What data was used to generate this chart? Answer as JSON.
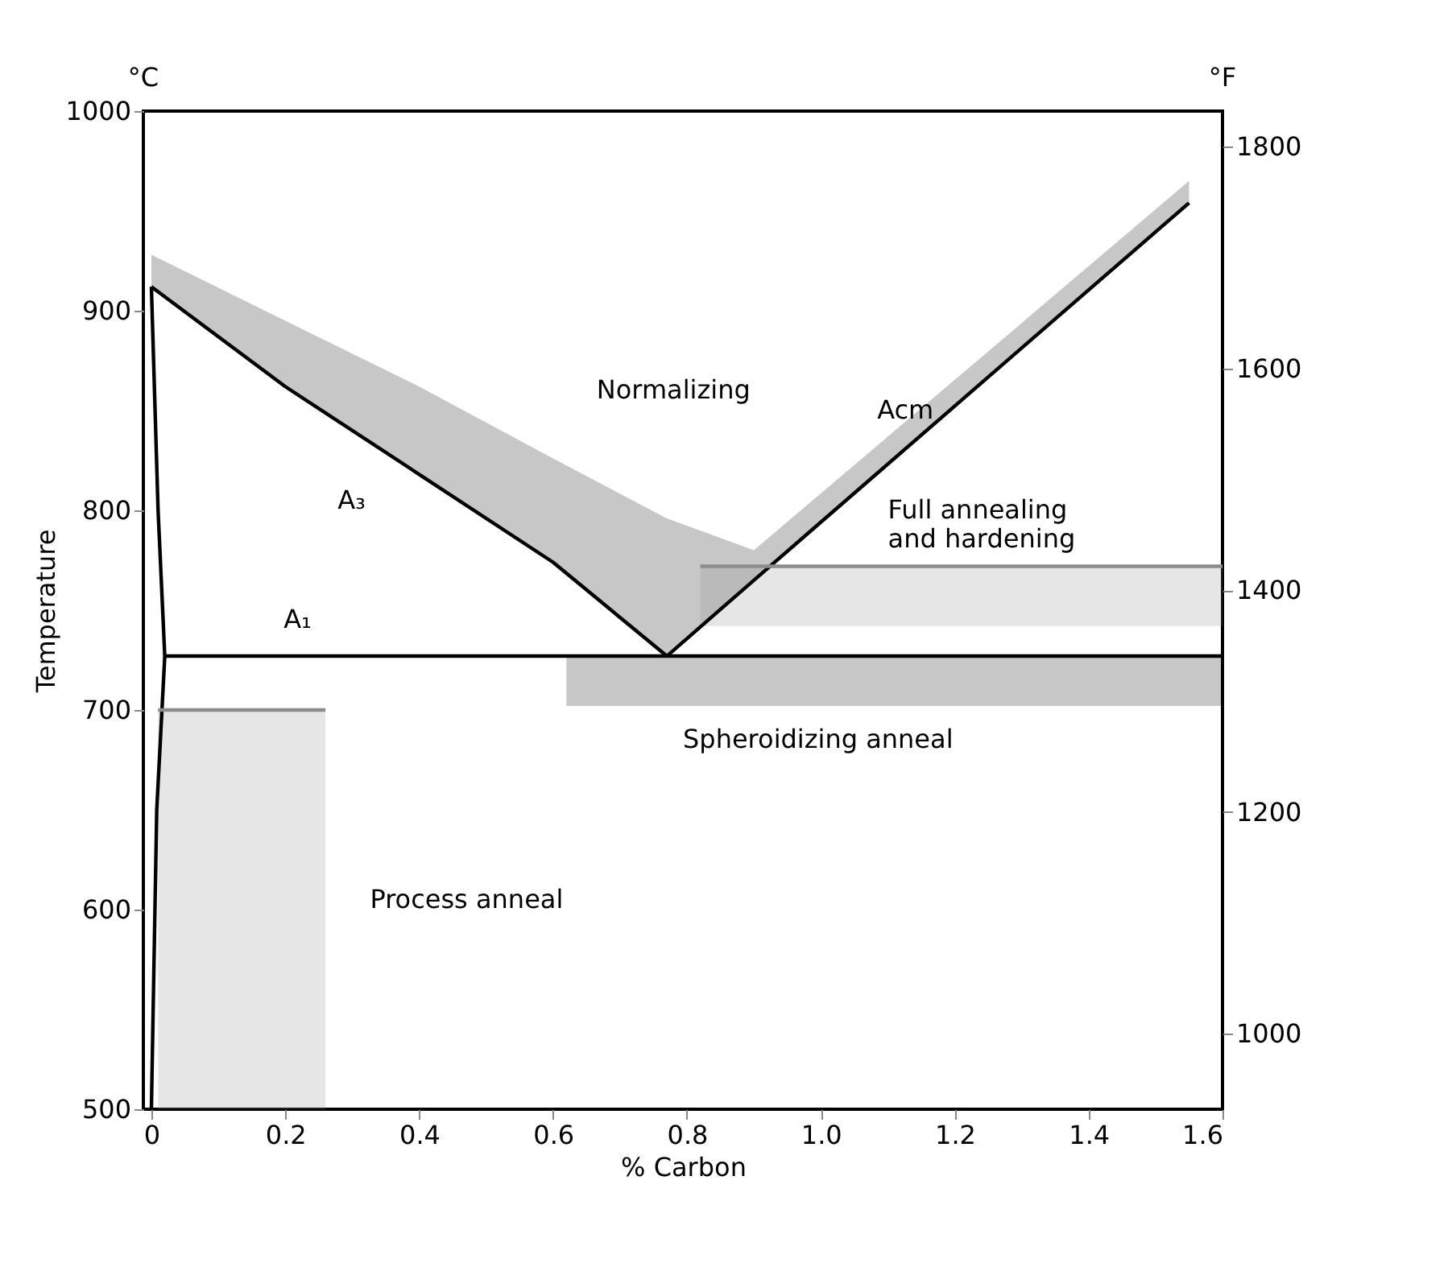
{
  "chart_data": {
    "type": "line",
    "xlabel": "% Carbon",
    "ylabel": "Temperature",
    "xlim": [
      -0.012,
      1.6
    ],
    "xticks": [
      0,
      0.2,
      0.4,
      0.6,
      0.8,
      {
        "value": 1,
        "label": "1.0"
      },
      1.2,
      1.4,
      1.6
    ],
    "ylim": [
      500,
      1000
    ],
    "yticks": [
      500,
      600,
      700,
      800,
      900,
      1000
    ],
    "y2lim": [
      932,
      1832
    ],
    "y2ticks": [
      1000,
      1200,
      1400,
      1600,
      1800
    ],
    "grid": false,
    "series": [
      {
        "color": "#000000",
        "x": [
          0,
          0.2,
          0.4,
          0.6,
          0.77
        ],
        "values": [
          912,
          862,
          818,
          774,
          727
        ],
        "lower": [
          912,
          862,
          818,
          774,
          727
        ],
        "upper": [
          928,
          895,
          862,
          826,
          796
        ]
      },
      {
        "color": "#000000",
        "x": [
          0.77,
          0.9,
          1.55
        ],
        "values": [
          727,
          765,
          954
        ],
        "lower": [
          727,
          765,
          954
        ],
        "upper": [
          796,
          780,
          965
        ]
      },
      {
        "color": "#000000",
        "x": [
          0.02,
          0.62,
          1.6
        ],
        "values": [
          727,
          727,
          727
        ],
        "lower": [
          null,
          702,
          702
        ],
        "upper": [
          null,
          727,
          727
        ]
      },
      {
        "color": "#000000",
        "x": [
          0,
          0.01,
          0.02,
          0.008,
          0
        ],
        "values": [
          912,
          800,
          727,
          650,
          500
        ]
      },
      {
        "color": "#8c8c8c",
        "x": [
          0.82,
          1.6
        ],
        "values": [
          772,
          772
        ],
        "lower": [
          742,
          742
        ],
        "upper": [
          772,
          772
        ]
      },
      {
        "color": "#8c8c8c",
        "x": [
          0.01,
          0.26
        ],
        "values": [
          700,
          700
        ],
        "lower": [
          500,
          500
        ],
        "upper": [
          700,
          700
        ]
      }
    ],
    "annotations": [
      "°C",
      "°F",
      "A₃",
      "A₁",
      "Acm",
      "Normalizing",
      "Full annealing\nand hardening",
      "Spheroidizing anneal",
      "Process anneal"
    ]
  }
}
